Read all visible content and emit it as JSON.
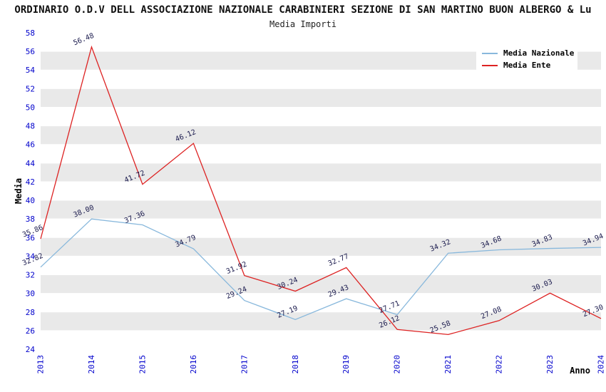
{
  "header": {
    "title": "ORDINARIO O.D.V DELL ASSOCIAZIONE NAZIONALE CARABINIERI SEZIONE DI SAN MARTINO BUON ALBERGO & Lu",
    "subtitle": "Media Importi"
  },
  "axes": {
    "y_label": "Media",
    "x_label": "Anno",
    "tick_color": "#0000CC",
    "yticks": [
      24,
      26,
      28,
      30,
      32,
      34,
      36,
      38,
      40,
      42,
      44,
      46,
      48,
      50,
      52,
      54,
      56,
      58
    ]
  },
  "legend": {
    "items": [
      {
        "label": "Media Nazionale",
        "color": "#88B8DC"
      },
      {
        "label": "Media Ente",
        "color": "#DD2222"
      }
    ]
  },
  "chart_data": {
    "type": "line",
    "title": "Media Importi",
    "xlabel": "Anno",
    "ylabel": "Media",
    "categories": [
      "2013",
      "2014",
      "2015",
      "2016",
      "2017",
      "2018",
      "2019",
      "2020",
      "2021",
      "2022",
      "2023",
      "2024"
    ],
    "series": [
      {
        "name": "Media Nazionale",
        "color": "#88B8DC",
        "values": [
          32.82,
          38.0,
          37.36,
          34.79,
          29.24,
          27.19,
          29.43,
          27.71,
          34.32,
          34.68,
          34.83,
          34.94
        ]
      },
      {
        "name": "Media Ente",
        "color": "#DD2222",
        "values": [
          35.86,
          56.48,
          41.72,
          46.12,
          31.92,
          30.24,
          32.77,
          26.12,
          25.58,
          27.08,
          30.03,
          27.3
        ]
      }
    ],
    "ylim": [
      24,
      58
    ],
    "ytick_step": 2,
    "grid": "horizontal-bands",
    "band_color": "#E9E9E9",
    "gridline_color": "#FFFFFF",
    "label_color": "#1A1A4D",
    "legend_position": "top-right"
  }
}
